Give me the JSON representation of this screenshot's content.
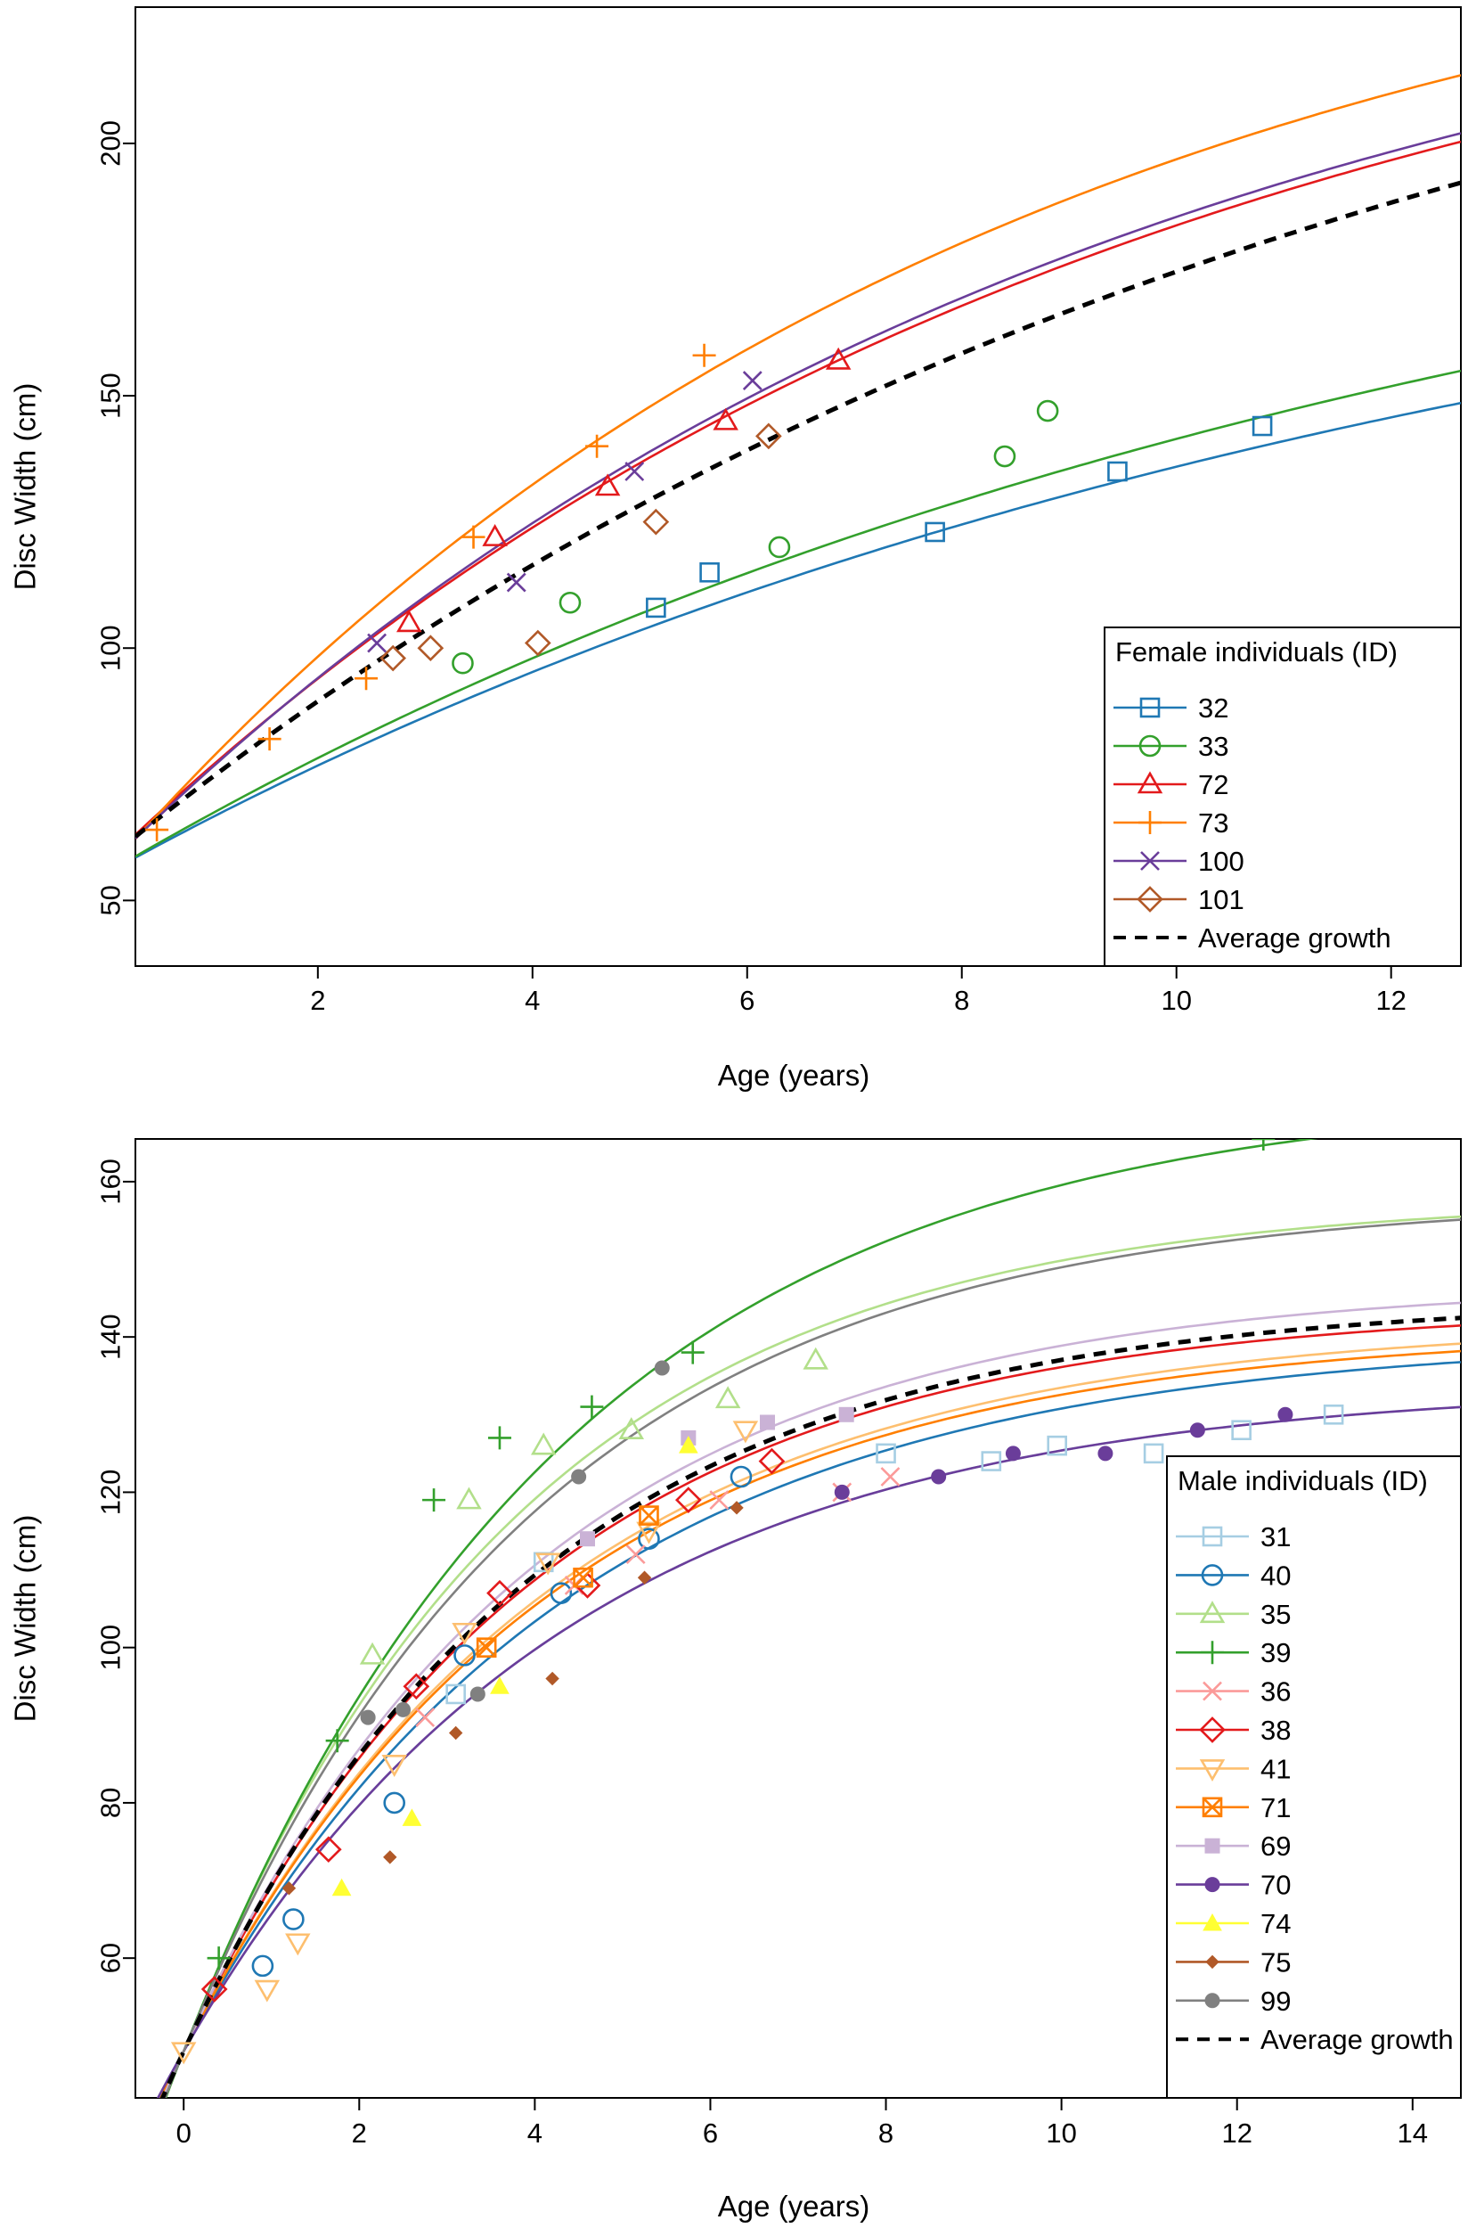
{
  "chart_data": [
    {
      "type": "line",
      "title": "",
      "xlabel": "Age (years)",
      "ylabel": "Disc Width (cm)",
      "xlim": [
        0.3,
        12.65
      ],
      "ylim": [
        37,
        227
      ],
      "xticks": [
        2,
        4,
        6,
        8,
        10,
        12
      ],
      "yticks": [
        50,
        100,
        150,
        200
      ],
      "grid": false,
      "legend": {
        "title": "Female individuals (ID)",
        "placement": "bottom-right"
      },
      "average": {
        "name": "Average growth",
        "color": "#000000",
        "Linf": 262,
        "k": 0.085,
        "L0": 57.5
      },
      "series": [
        {
          "name": "32",
          "color": "#1f78b4",
          "marker": "square",
          "Linf": 202,
          "k": 0.08,
          "L0": 55,
          "points": [
            [
              5.15,
              108
            ],
            [
              5.65,
              115
            ],
            [
              7.75,
              123
            ],
            [
              9.45,
              135
            ],
            [
              10.8,
              144
            ]
          ]
        },
        {
          "name": "33",
          "color": "#33a02c",
          "marker": "circle",
          "Linf": 212,
          "k": 0.08,
          "L0": 55,
          "points": [
            [
              3.35,
              97
            ],
            [
              4.35,
              109
            ],
            [
              6.3,
              120
            ],
            [
              8.4,
              138
            ],
            [
              8.8,
              147
            ]
          ]
        },
        {
          "name": "72",
          "color": "#e31a1c",
          "marker": "triangle",
          "Linf": 252,
          "k": 0.105,
          "L0": 57,
          "points": [
            [
              2.85,
              105
            ],
            [
              3.65,
              122
            ],
            [
              4.7,
              132
            ],
            [
              5.8,
              145
            ],
            [
              6.85,
              157
            ]
          ]
        },
        {
          "name": "73",
          "color": "#ff7f00",
          "marker": "plus",
          "Linf": 258,
          "k": 0.12,
          "L0": 55,
          "points": [
            [
              0.5,
              64
            ],
            [
              1.55,
              82
            ],
            [
              2.45,
              94
            ],
            [
              3.45,
              122
            ],
            [
              4.6,
              140
            ],
            [
              5.6,
              158
            ]
          ]
        },
        {
          "name": "100",
          "color": "#6a3d9a",
          "marker": "cross",
          "Linf": 252,
          "k": 0.108,
          "L0": 56,
          "points": [
            [
              2.55,
              101
            ],
            [
              3.85,
              113
            ],
            [
              4.95,
              135
            ],
            [
              6.05,
              153
            ]
          ]
        },
        {
          "name": "101",
          "color": "#b15928",
          "marker": "diamond",
          "Linf": 0,
          "k": 0,
          "L0": 0,
          "points": [
            [
              2.7,
              98
            ],
            [
              3.05,
              100
            ],
            [
              4.05,
              101
            ],
            [
              5.15,
              125
            ],
            [
              6.2,
              142
            ]
          ]
        }
      ]
    },
    {
      "type": "line",
      "title": "",
      "xlabel": "Age (years)",
      "ylabel": "Disc Width (cm)",
      "xlim": [
        -0.55,
        14.55
      ],
      "ylim": [
        42,
        165.5
      ],
      "xticks": [
        0,
        2,
        4,
        6,
        8,
        10,
        12,
        14
      ],
      "yticks": [
        60,
        80,
        100,
        120,
        140,
        160
      ],
      "grid": false,
      "legend": {
        "title": "Male individuals (ID)",
        "placement": "bottom-right"
      },
      "average": {
        "name": "Average growth",
        "color": "#000000",
        "Linf": 145,
        "k": 0.25,
        "L0": 48
      },
      "series": [
        {
          "name": "31",
          "color": "#a6cee3",
          "marker": "square",
          "Linf": 134,
          "k": 0.23,
          "L0": 48,
          "points": [
            [
              3.1,
              94
            ],
            [
              4.1,
              111
            ],
            [
              8.0,
              125
            ],
            [
              9.2,
              124
            ],
            [
              9.95,
              126
            ],
            [
              11.05,
              125
            ],
            [
              12.05,
              128
            ],
            [
              13.1,
              130
            ]
          ]
        },
        {
          "name": "40",
          "color": "#1f78b4",
          "marker": "circle",
          "Linf": 140,
          "k": 0.23,
          "L0": 48,
          "points": [
            [
              0.9,
              59
            ],
            [
              1.25,
              65
            ],
            [
              2.4,
              80
            ],
            [
              3.2,
              99
            ],
            [
              4.3,
              107
            ],
            [
              5.3,
              114
            ],
            [
              6.35,
              122
            ]
          ]
        },
        {
          "name": "35",
          "color": "#b2df8a",
          "marker": "triangle",
          "Linf": 158,
          "k": 0.26,
          "L0": 48,
          "points": [
            [
              2.15,
              99
            ],
            [
              3.25,
              119
            ],
            [
              4.1,
              126
            ],
            [
              5.1,
              128
            ],
            [
              6.2,
              132
            ],
            [
              7.2,
              137
            ]
          ]
        },
        {
          "name": "39",
          "color": "#33a02c",
          "marker": "plus",
          "Linf": 172,
          "k": 0.23,
          "L0": 48,
          "points": [
            [
              0.4,
              60
            ],
            [
              1.75,
              88
            ],
            [
              2.85,
              119
            ],
            [
              3.6,
              127
            ],
            [
              4.65,
              131
            ],
            [
              5.8,
              138
            ],
            [
              12.3,
              165.5
            ]
          ]
        },
        {
          "name": "36",
          "color": "#fb9a99",
          "marker": "cross",
          "Linf": 0,
          "k": 0,
          "L0": 0,
          "points": [
            [
              2.75,
              91
            ],
            [
              4.45,
              108
            ],
            [
              5.15,
              112
            ],
            [
              6.1,
              119
            ],
            [
              7.5,
              120
            ],
            [
              8.05,
              122
            ]
          ]
        },
        {
          "name": "38",
          "color": "#e31a1c",
          "marker": "diamond",
          "Linf": 144,
          "k": 0.25,
          "L0": 48,
          "points": [
            [
              0.35,
              56
            ],
            [
              1.65,
              74
            ],
            [
              2.65,
              95
            ],
            [
              3.6,
              107
            ],
            [
              4.6,
              108
            ],
            [
              5.75,
              119
            ],
            [
              6.7,
              124
            ]
          ]
        },
        {
          "name": "41",
          "color": "#fdbf6f",
          "marker": "triangle-down",
          "Linf": 142,
          "k": 0.24,
          "L0": 48,
          "points": [
            [
              0.0,
              48
            ],
            [
              0.95,
              56
            ],
            [
              1.3,
              62
            ],
            [
              2.4,
              85
            ],
            [
              3.2,
              102
            ],
            [
              4.15,
              111
            ],
            [
              5.3,
              115
            ],
            [
              6.4,
              128
            ]
          ]
        },
        {
          "name": "71",
          "color": "#ff7f00",
          "marker": "square-x",
          "Linf": 141,
          "k": 0.24,
          "L0": 48,
          "points": [
            [
              3.45,
              100
            ],
            [
              4.55,
              109
            ],
            [
              5.3,
              117
            ]
          ]
        },
        {
          "name": "69",
          "color": "#cab2d6",
          "marker": "filled-square",
          "Linf": 147,
          "k": 0.25,
          "L0": 48,
          "points": [
            [
              4.6,
              114
            ],
            [
              5.75,
              127
            ],
            [
              6.65,
              129
            ],
            [
              7.55,
              130
            ]
          ]
        },
        {
          "name": "70",
          "color": "#6a3d9a",
          "marker": "filled-circle",
          "Linf": 134,
          "k": 0.23,
          "L0": 48,
          "points": [
            [
              7.5,
              120
            ],
            [
              8.6,
              122
            ],
            [
              9.45,
              125
            ],
            [
              10.5,
              125
            ],
            [
              11.55,
              128
            ],
            [
              12.55,
              130
            ]
          ]
        },
        {
          "name": "74",
          "color": "#ffff33",
          "marker": "filled-triangle",
          "Linf": 0,
          "k": 0,
          "L0": 0,
          "points": [
            [
              1.8,
              69
            ],
            [
              2.6,
              78
            ],
            [
              3.6,
              95
            ],
            [
              5.75,
              126
            ]
          ]
        },
        {
          "name": "75",
          "color": "#b15928",
          "marker": "filled-diamond",
          "Linf": 0,
          "k": 0,
          "L0": 0,
          "points": [
            [
              1.2,
              69
            ],
            [
              2.35,
              73
            ],
            [
              3.1,
              89
            ],
            [
              4.2,
              96
            ],
            [
              5.25,
              109
            ],
            [
              6.3,
              118
            ]
          ]
        },
        {
          "name": "99",
          "color": "#808080",
          "marker": "filled-circle",
          "Linf": 158,
          "k": 0.25,
          "L0": 48,
          "points": [
            [
              2.1,
              91
            ],
            [
              2.5,
              92
            ],
            [
              3.35,
              94
            ],
            [
              4.5,
              122
            ],
            [
              5.45,
              136
            ]
          ]
        }
      ]
    }
  ]
}
